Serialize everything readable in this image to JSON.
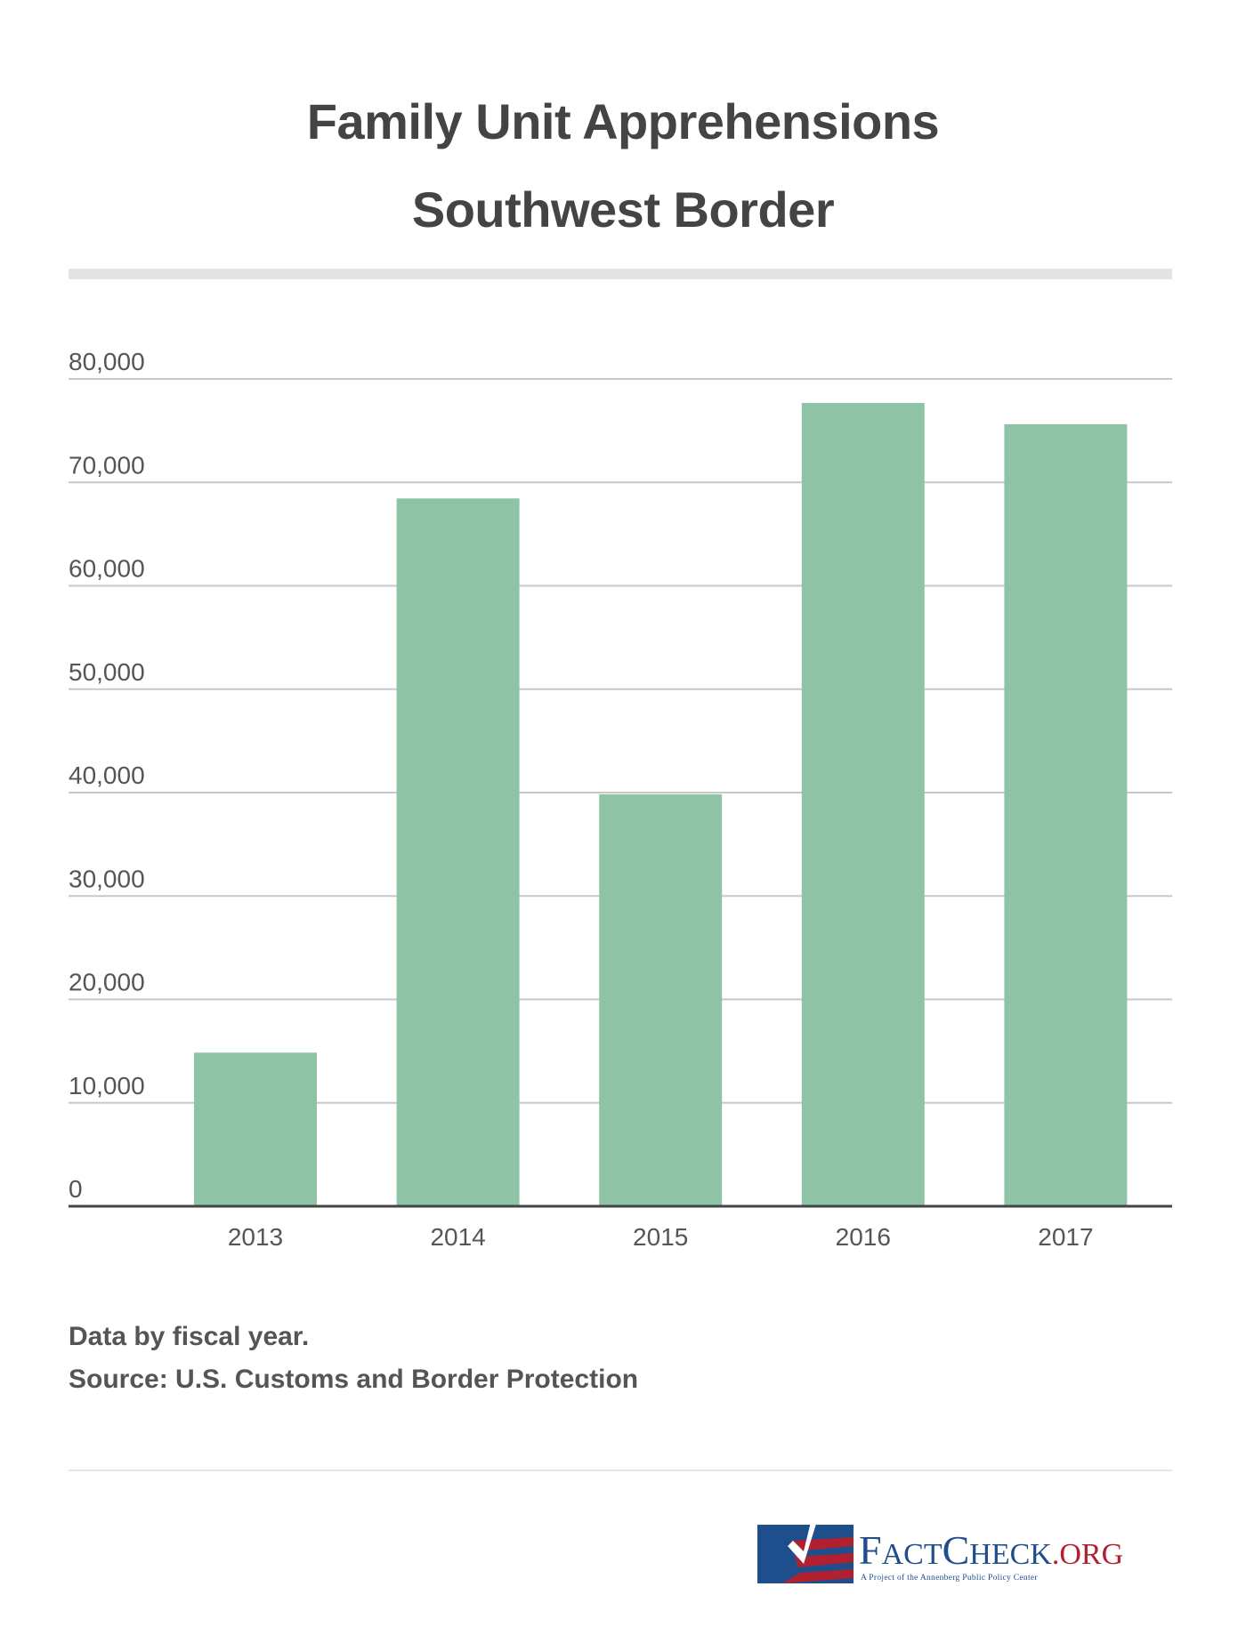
{
  "title": "Family Unit Apprehensions",
  "subtitle": "Southwest Border",
  "notes": [
    "Data by fiscal year.",
    "Source: U.S. Customs and Border Protection"
  ],
  "logo": {
    "name": "FactCheck.org",
    "tagline": "A Project of the Annenberg Public Policy Center"
  },
  "colors": {
    "bar": "#8fc3a5",
    "grid": "#c8c8c8",
    "axis": "#444444",
    "logo_blue": "#1f4e8c",
    "logo_red": "#b0202e"
  },
  "chart_data": {
    "type": "bar",
    "title": "Family Unit Apprehensions Southwest Border",
    "xlabel": "",
    "ylabel": "",
    "categories": [
      "2013",
      "2014",
      "2015",
      "2016",
      "2017"
    ],
    "values": [
      14855,
      68445,
      39838,
      77674,
      75622
    ],
    "ylim": [
      0,
      80000
    ],
    "yticks": [
      0,
      10000,
      20000,
      30000,
      40000,
      50000,
      60000,
      70000,
      80000
    ],
    "ytick_labels": [
      "0",
      "10,000",
      "20,000",
      "30,000",
      "40,000",
      "50,000",
      "60,000",
      "70,000",
      "80,000"
    ],
    "grid": true,
    "legend": "none"
  }
}
